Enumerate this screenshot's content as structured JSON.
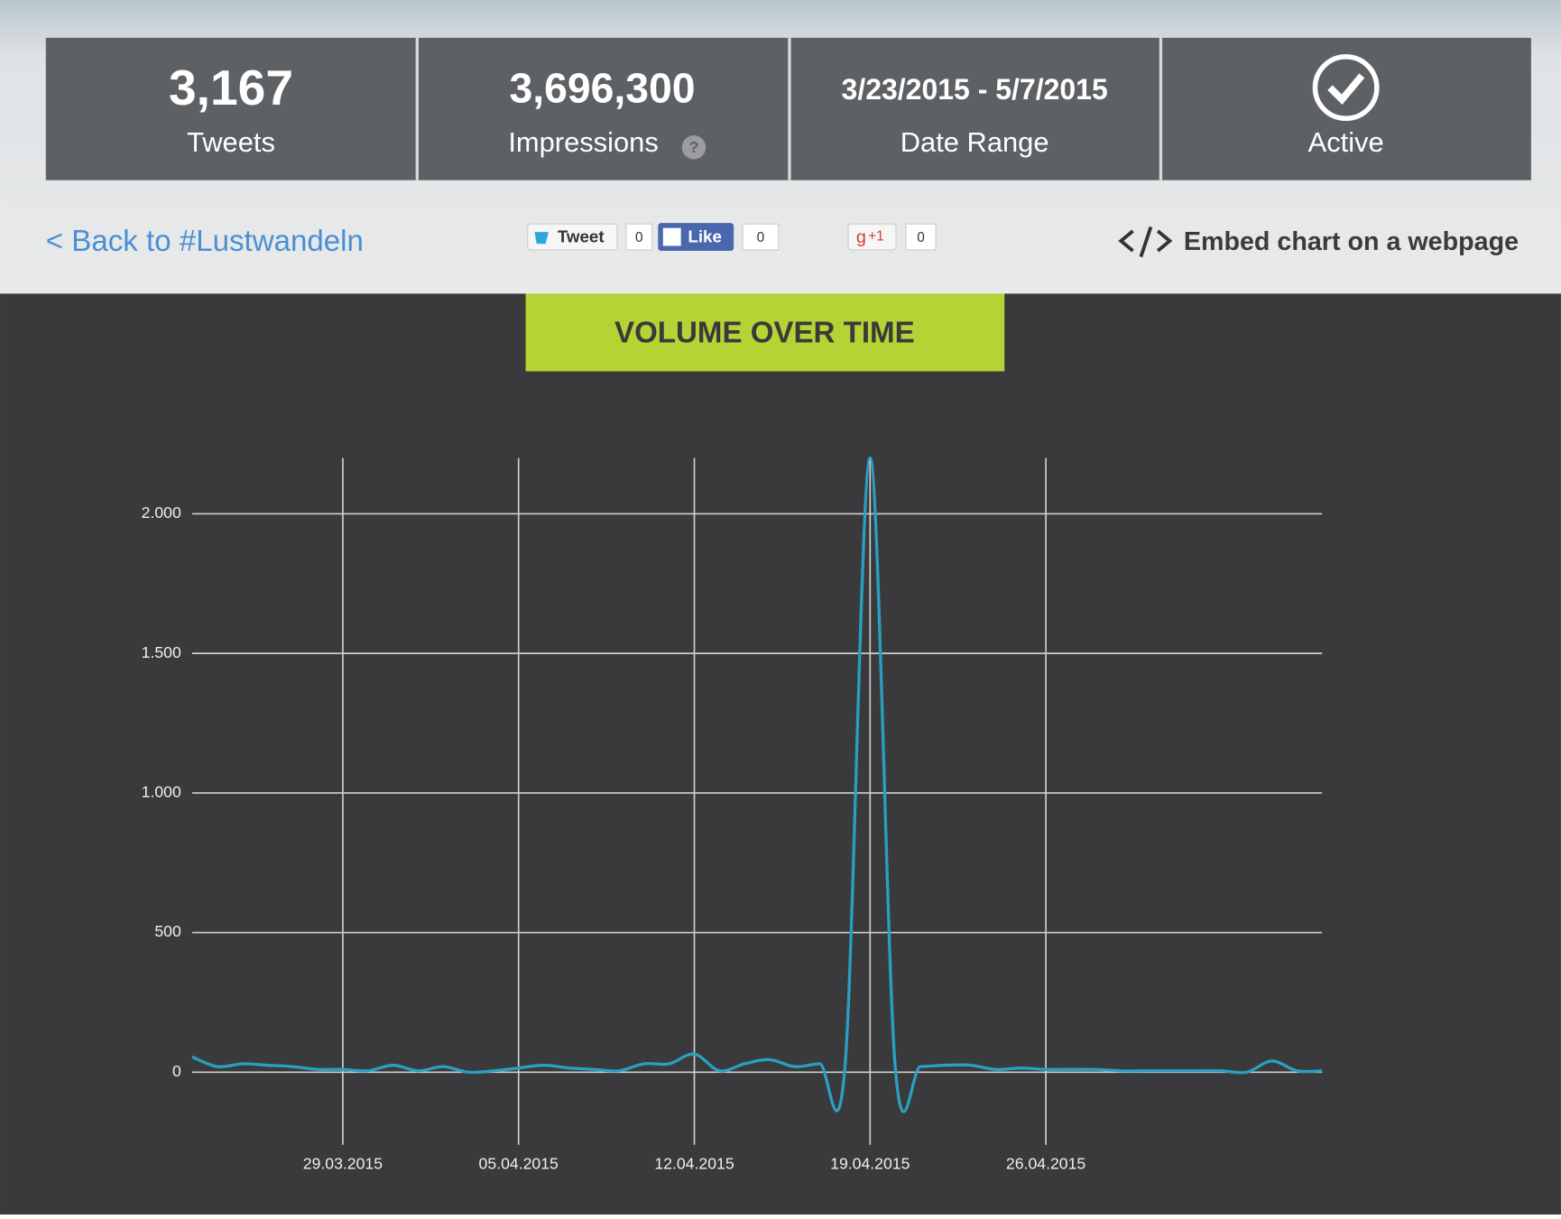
{
  "stats": [
    {
      "value": "3,167",
      "label": "Tweets"
    },
    {
      "value": "3,696,300",
      "label": "Impressions"
    },
    {
      "value": "3/23/2015 - 5/7/2015",
      "label": "Date Range"
    },
    {
      "label": "Active"
    }
  ],
  "nav": {
    "back_link": "< Back to #Lustwandeln",
    "tweet": "Tweet",
    "tweet_count": "0",
    "like": "Like",
    "like_count": "0",
    "gplus": "+1",
    "gplus_count": "0",
    "embed": "Embed chart on a webpage"
  },
  "chart_data": {
    "type": "line",
    "title": "VOLUME OVER TIME",
    "x": [
      "23.03.2015",
      "24.03.2015",
      "25.03.2015",
      "26.03.2015",
      "27.03.2015",
      "28.03.2015",
      "29.03.2015",
      "30.03.2015",
      "31.03.2015",
      "01.04.2015",
      "02.04.2015",
      "03.04.2015",
      "04.04.2015",
      "05.04.2015",
      "06.04.2015",
      "07.04.2015",
      "08.04.2015",
      "09.04.2015",
      "10.04.2015",
      "11.04.2015",
      "12.04.2015",
      "13.04.2015",
      "14.04.2015",
      "15.04.2015",
      "16.04.2015",
      "17.04.2015",
      "18.04.2015",
      "19.04.2015",
      "20.04.2015",
      "21.04.2015",
      "22.04.2015",
      "23.04.2015",
      "24.04.2015",
      "25.04.2015",
      "26.04.2015",
      "27.04.2015",
      "28.04.2015",
      "29.04.2015",
      "30.04.2015",
      "01.05.2015",
      "02.05.2015",
      "03.05.2015",
      "04.05.2015",
      "05.05.2015",
      "06.05.2015",
      "07.05.2015"
    ],
    "series": [
      {
        "color": "#2a9fc0",
        "values": [
          55,
          20,
          30,
          25,
          20,
          10,
          10,
          5,
          25,
          5,
          20,
          0,
          5,
          15,
          25,
          15,
          10,
          5,
          30,
          30,
          65,
          5,
          30,
          45,
          20,
          30,
          20,
          2200,
          20,
          20,
          25,
          25,
          10,
          15,
          10,
          10,
          10,
          5,
          5,
          5,
          5,
          5,
          0,
          40,
          5,
          5
        ]
      }
    ],
    "xlim": [
      "23.03.2015",
      "07.05.2015"
    ],
    "xticks": [
      "29.03.2015",
      "05.04.2015",
      "12.04.2015",
      "19.04.2015",
      "26.04.2015"
    ],
    "ylim": [
      -260,
      2200
    ],
    "yticks": [
      0,
      500,
      {
        "value": 1000,
        "label": "1.000"
      },
      {
        "value": 1500,
        "label": "1.500"
      },
      {
        "value": 2000,
        "label": "2.000"
      }
    ],
    "grid": true
  }
}
